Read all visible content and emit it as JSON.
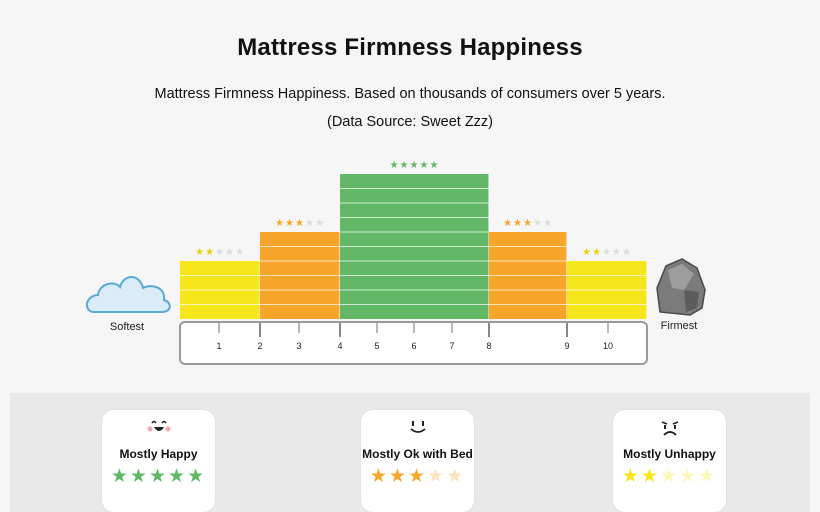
{
  "chart_data": {
    "type": "bar",
    "title": "Mattress Firmness Happiness",
    "subtitle": "Mattress Firmness Happiness. Based on thousands of consumers over 5 years.",
    "source": "(Data Source: Sweet Zzz)",
    "x_ticks": [
      "1",
      "2",
      "3",
      "4",
      "5",
      "6",
      "7",
      "8",
      "9",
      "10"
    ],
    "left_end_label": "Softest",
    "right_end_label": "Firmest",
    "segments": [
      {
        "from": 0,
        "to": 2,
        "stars": 2,
        "color": "#f5e71c"
      },
      {
        "from": 2,
        "to": 4,
        "stars": 3,
        "color": "#f7a52b"
      },
      {
        "from": 4,
        "to": 8,
        "stars": 5,
        "color": "#62b866"
      },
      {
        "from": 8,
        "to": 9,
        "stars": 3,
        "color": "#f7a52b"
      },
      {
        "from": 9,
        "to": 10,
        "stars": 2,
        "color": "#f5e71c"
      }
    ],
    "max_stars": 5
  },
  "legend": [
    {
      "face": "happy-face-icon",
      "label": "Mostly Happy",
      "stars": 5,
      "color": "#62b866"
    },
    {
      "face": "neutral-face-icon",
      "label": "Mostly Ok with Bed",
      "stars": 3,
      "color": "#f7a52b"
    },
    {
      "face": "sad-face-icon",
      "label": "Mostly Unhappy",
      "stars": 2,
      "color": "#f5e71c"
    }
  ],
  "empty_star_color": "#cfcfcf"
}
